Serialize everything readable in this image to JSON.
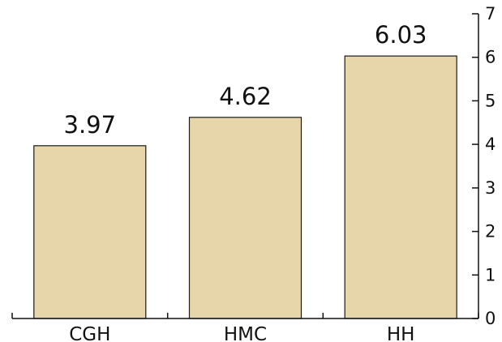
{
  "chart_data": {
    "type": "bar",
    "categories": [
      "CGH",
      "HMC",
      "HH"
    ],
    "values": [
      3.97,
      4.62,
      6.03
    ],
    "data_labels": [
      "3.97",
      "4.62",
      "6.03"
    ],
    "title": "",
    "xlabel": "",
    "ylabel": "",
    "ylim": [
      0,
      7
    ],
    "y_ticks": [
      0,
      1,
      2,
      3,
      4,
      5,
      6,
      7
    ],
    "y_tick_labels": [
      "0",
      "1",
      "2",
      "3",
      "4",
      "5",
      "6",
      "7"
    ],
    "y_axis_side": "right",
    "grid": false,
    "legend": "none",
    "colors": {
      "bar_fill": "#e7d6a9",
      "bar_stroke": "#1a1a1a",
      "axis": "#111111",
      "text": "#111111"
    }
  }
}
